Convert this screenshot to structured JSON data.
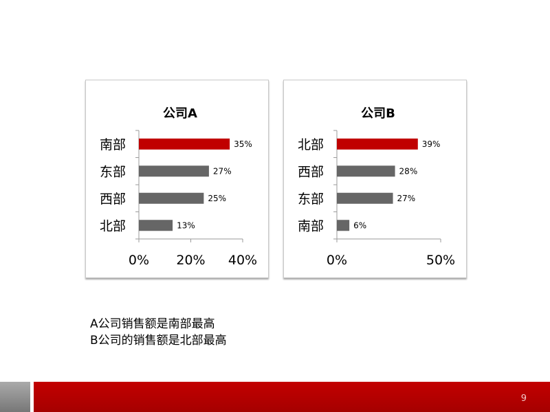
{
  "chart_data": [
    {
      "type": "bar",
      "orientation": "horizontal",
      "title": "公司A",
      "categories": [
        "南部",
        "东部",
        "西部",
        "北部"
      ],
      "values": [
        35,
        27,
        25,
        13
      ],
      "value_labels": [
        "35%",
        "27%",
        "25%",
        "13%"
      ],
      "bar_colors": [
        "#c00000",
        "#666666",
        "#666666",
        "#666666"
      ],
      "xlim": [
        0,
        40
      ],
      "xticks": [
        0,
        20,
        40
      ],
      "xtick_labels": [
        "0%",
        "20%",
        "40%"
      ],
      "grid": false,
      "xlabel": "",
      "ylabel": ""
    },
    {
      "type": "bar",
      "orientation": "horizontal",
      "title": "公司B",
      "categories": [
        "北部",
        "西部",
        "东部",
        "南部"
      ],
      "values": [
        39,
        28,
        27,
        6
      ],
      "value_labels": [
        "39%",
        "28%",
        "27%",
        "6%"
      ],
      "bar_colors": [
        "#c00000",
        "#666666",
        "#666666",
        "#666666"
      ],
      "xlim": [
        0,
        50
      ],
      "xticks": [
        0,
        50
      ],
      "xtick_labels": [
        "0%",
        "50%"
      ],
      "grid": false,
      "xlabel": "",
      "ylabel": ""
    }
  ],
  "caption": {
    "line1": "A公司销售额是南部最高",
    "line2": "B公司的销售额是北部最高"
  },
  "footer": {
    "page_number": "9"
  }
}
